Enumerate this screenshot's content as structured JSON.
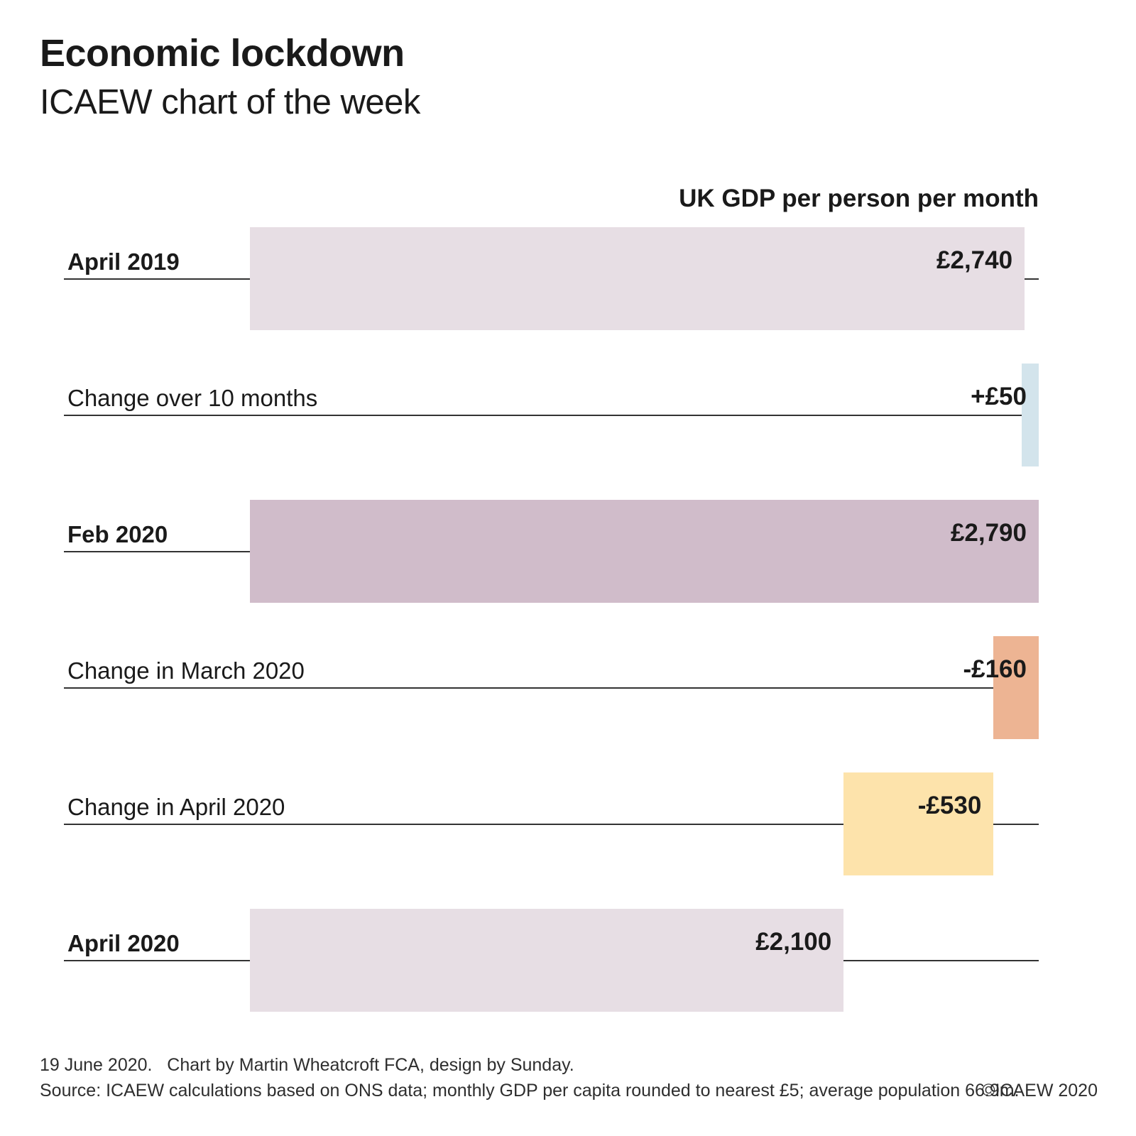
{
  "title": "Economic lockdown",
  "subtitle": "ICAEW chart of the week",
  "chart_data": {
    "type": "bar",
    "variant": "horizontal-waterfall",
    "axis_title": "UK GDP per person per month",
    "unit": "GBP per person per month",
    "value_range": [
      0,
      2790
    ],
    "grid": false,
    "legend": false,
    "rows": [
      {
        "label": "April 2019",
        "kind": "total",
        "from": 0,
        "to": 2740,
        "value": 2740,
        "value_label": "£2,740",
        "color": "#e7dee4",
        "bold_label": true
      },
      {
        "label": "Change over 10 months",
        "kind": "change",
        "from": 2740,
        "to": 2790,
        "value": 50,
        "value_label": "+£50",
        "color": "#d3e4ec",
        "bold_label": false
      },
      {
        "label": "Feb 2020",
        "kind": "total",
        "from": 0,
        "to": 2790,
        "value": 2790,
        "value_label": "£2,790",
        "color": "#d0bcca",
        "bold_label": true
      },
      {
        "label": "Change in March 2020",
        "kind": "change",
        "from": 2790,
        "to": 2630,
        "value": -160,
        "value_label": "-£160",
        "color": "#edb493",
        "bold_label": false
      },
      {
        "label": "Change in April 2020",
        "kind": "change",
        "from": 2630,
        "to": 2100,
        "value": -530,
        "value_label": "-£530",
        "color": "#fde3ab",
        "bold_label": false
      },
      {
        "label": "April 2020",
        "kind": "total",
        "from": 0,
        "to": 2100,
        "value": 2100,
        "value_label": "£2,100",
        "color": "#e7dee4",
        "bold_label": true
      }
    ]
  },
  "footer": {
    "line1": "19 June 2020.   Chart by Martin Wheatcroft FCA, design by Sunday.",
    "line2": "Source: ICAEW calculations based on ONS data; monthly GDP per capita rounded to nearest £5; average population 66.9m.",
    "copyright": "©ICAEW 2020"
  },
  "colors": {
    "background": "#ffffff",
    "text": "#1a1a1a",
    "line": "#333333",
    "total_bar": "#e7dee4",
    "feb_total_bar": "#d0bcca",
    "increase_bar": "#d3e4ec",
    "decrease_march_bar": "#edb493",
    "decrease_april_bar": "#fde3ab"
  }
}
